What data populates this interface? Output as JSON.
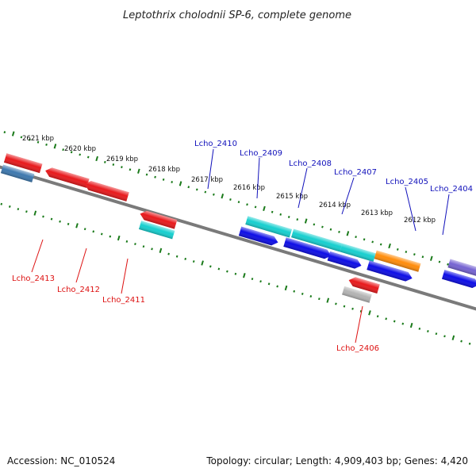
{
  "title": "Leptothrix cholodnii SP-6, complete genome",
  "footer": {
    "accession": "Accession: NC_010524",
    "topology": "Topology: circular; Length: 4,909,403 bp; Genes: 4,420"
  },
  "scale": {
    "unit": "kbp",
    "ticks": [
      {
        "kbp": 2621,
        "label": "2621 kbp"
      },
      {
        "kbp": 2620,
        "label": "2620 kbp"
      },
      {
        "kbp": 2619,
        "label": "2619 kbp"
      },
      {
        "kbp": 2618,
        "label": "2618 kbp"
      },
      {
        "kbp": 2617,
        "label": "2617 kbp"
      },
      {
        "kbp": 2616,
        "label": "2616 kbp"
      },
      {
        "kbp": 2615,
        "label": "2615 kbp"
      },
      {
        "kbp": 2614,
        "label": "2614 kbp"
      },
      {
        "kbp": 2613,
        "label": "2613 kbp"
      },
      {
        "kbp": 2612,
        "label": "2612 kbp"
      }
    ]
  },
  "colors": {
    "red": "#e8191c",
    "cyan": "#16cfcf",
    "blue": "#0d0de6",
    "orange": "#ff8c0a",
    "steel": "#3d78ae",
    "lavender": "#7563d2",
    "navy": "#101a78",
    "grey": "#b3b3b3",
    "tick_green": "#1a7a1a",
    "backbone": "#7a7a7a",
    "label_red": "#dd1111",
    "label_blue": "#1111bb"
  },
  "labels": {
    "top": [
      "Lcho_2410",
      "Lcho_2409",
      "Lcho_2408",
      "Lcho_2407",
      "Lcho_2405",
      "Lcho_2404"
    ],
    "bottom": [
      "Lcho_2413",
      "Lcho_2412",
      "Lcho_2411",
      "Lcho_2406"
    ]
  }
}
